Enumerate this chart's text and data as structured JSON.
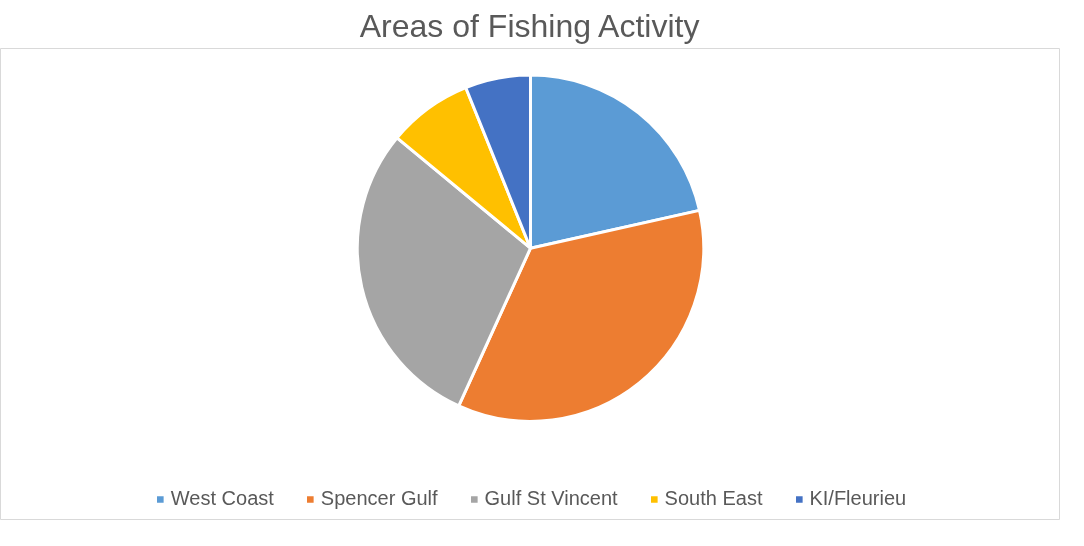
{
  "chart_data": {
    "type": "pie",
    "title": "Areas of Fishing Activity",
    "categories": [
      "West Coast",
      "Spencer Gulf",
      "Gulf St Vincent",
      "South East",
      "KI/Fleurieu"
    ],
    "values": [
      21.5,
      35.3,
      29.2,
      7.9,
      6.1
    ],
    "colors": [
      "#5b9bd5",
      "#ed7d31",
      "#a5a5a5",
      "#ffc000",
      "#4472c4"
    ],
    "legend": "bottom"
  }
}
